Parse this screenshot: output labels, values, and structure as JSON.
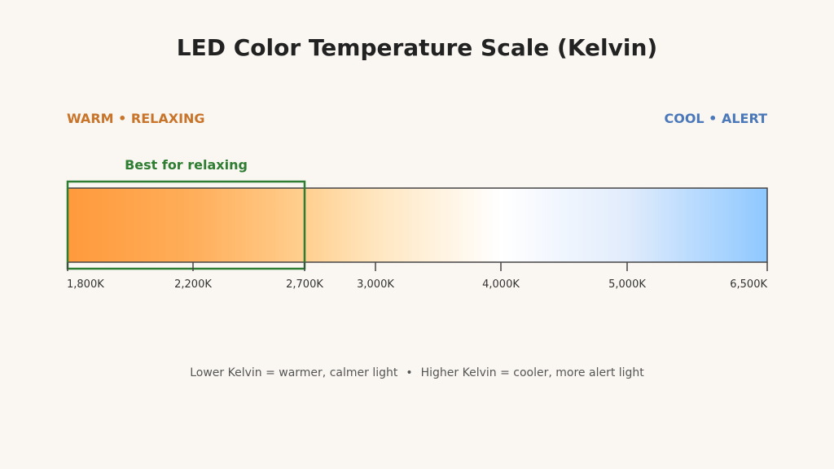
{
  "title": "LED Color Temperature Scale (Kelvin)",
  "warm_label": "WARM • RELAXING",
  "cool_label": "COOL • ALERT",
  "highlight": {
    "label": "Best for relaxing",
    "range": [
      1800,
      2700
    ]
  },
  "scale": {
    "min": 1800,
    "max": 6500,
    "ticks": [
      {
        "value": 1800,
        "label": "1,800K"
      },
      {
        "value": 2200,
        "label": "2,200K"
      },
      {
        "value": 2700,
        "label": "2,700K"
      },
      {
        "value": 3000,
        "label": "3,000K"
      },
      {
        "value": 4000,
        "label": "4,000K"
      },
      {
        "value": 5000,
        "label": "5,000K"
      },
      {
        "value": 6500,
        "label": "6,500K"
      }
    ],
    "gradient_stops": [
      {
        "value": 1800,
        "color": "#ff9a3c"
      },
      {
        "value": 2200,
        "color": "#ffae5a"
      },
      {
        "value": 2700,
        "color": "#ffcf8f"
      },
      {
        "value": 3000,
        "color": "#ffe6bf"
      },
      {
        "value": 4000,
        "color": "#ffffff"
      },
      {
        "value": 5000,
        "color": "#e1ecfc"
      },
      {
        "value": 6500,
        "color": "#8ec8ff"
      }
    ]
  },
  "footnote": {
    "left": "Lower Kelvin = warmer, calmer light",
    "separator": "•",
    "right": "Higher Kelvin = cooler, more alert light"
  },
  "colors": {
    "warm_text": "#c8742a",
    "cool_text": "#4a78b8",
    "highlight": "#2e7d32",
    "axis": "#444444"
  }
}
